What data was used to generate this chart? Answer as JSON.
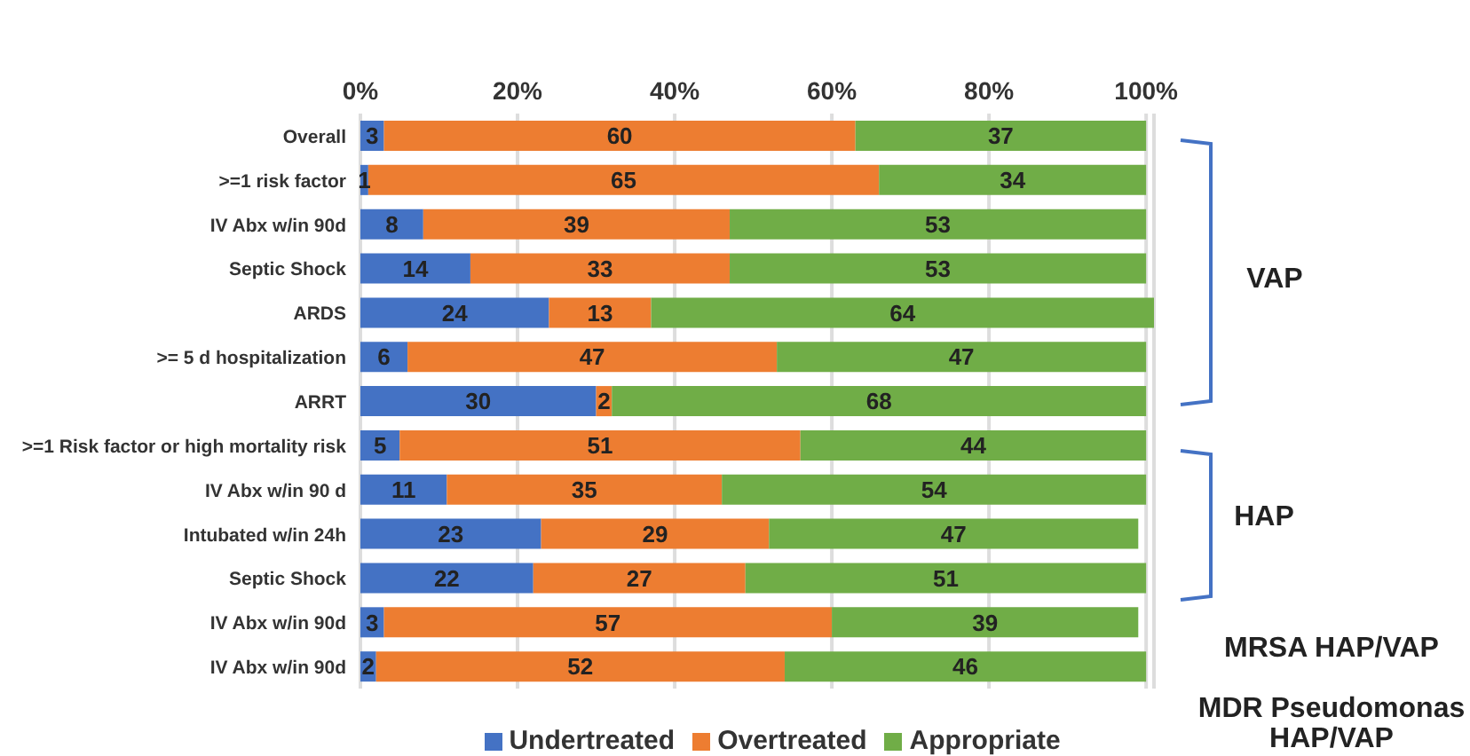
{
  "chart_data": {
    "type": "bar",
    "orientation": "horizontal",
    "stacked": true,
    "categories": [
      "Overall",
      ">=1 risk factor",
      "IV Abx w/in 90d",
      "Septic Shock",
      "ARDS",
      ">= 5 d hospitalization",
      "ARRT",
      ">=1 Risk factor or high mortality risk",
      "IV Abx w/in 90 d",
      "Intubated w/in 24h",
      "Septic Shock",
      "IV Abx w/in 90d",
      "IV Abx w/in 90d"
    ],
    "series": [
      {
        "name": "Undertreated",
        "color": "#4472c4",
        "values": [
          3,
          1,
          8,
          14,
          24,
          6,
          30,
          5,
          11,
          23,
          22,
          3,
          2
        ]
      },
      {
        "name": "Overtreated",
        "color": "#ed7d31",
        "values": [
          60,
          65,
          39,
          33,
          13,
          47,
          2,
          51,
          35,
          29,
          27,
          57,
          52
        ]
      },
      {
        "name": "Appropriate",
        "color": "#70ad47",
        "values": [
          37,
          34,
          53,
          53,
          64,
          47,
          68,
          44,
          54,
          47,
          51,
          39,
          46
        ]
      }
    ],
    "xlim": [
      0,
      101
    ],
    "xticks": [
      {
        "value": 0,
        "label": "0%"
      },
      {
        "value": 20,
        "label": "20%"
      },
      {
        "value": 40,
        "label": "40%"
      },
      {
        "value": 60,
        "label": "60%"
      },
      {
        "value": 80,
        "label": "80%"
      },
      {
        "value": 100,
        "label": "100%"
      }
    ],
    "grid": "x",
    "data_labels": true,
    "legend": "bottom",
    "annotations": [
      "VAP",
      "HAP",
      "MRSA HAP/VAP",
      "MDR Pseudomonas HAP/VAP"
    ]
  }
}
